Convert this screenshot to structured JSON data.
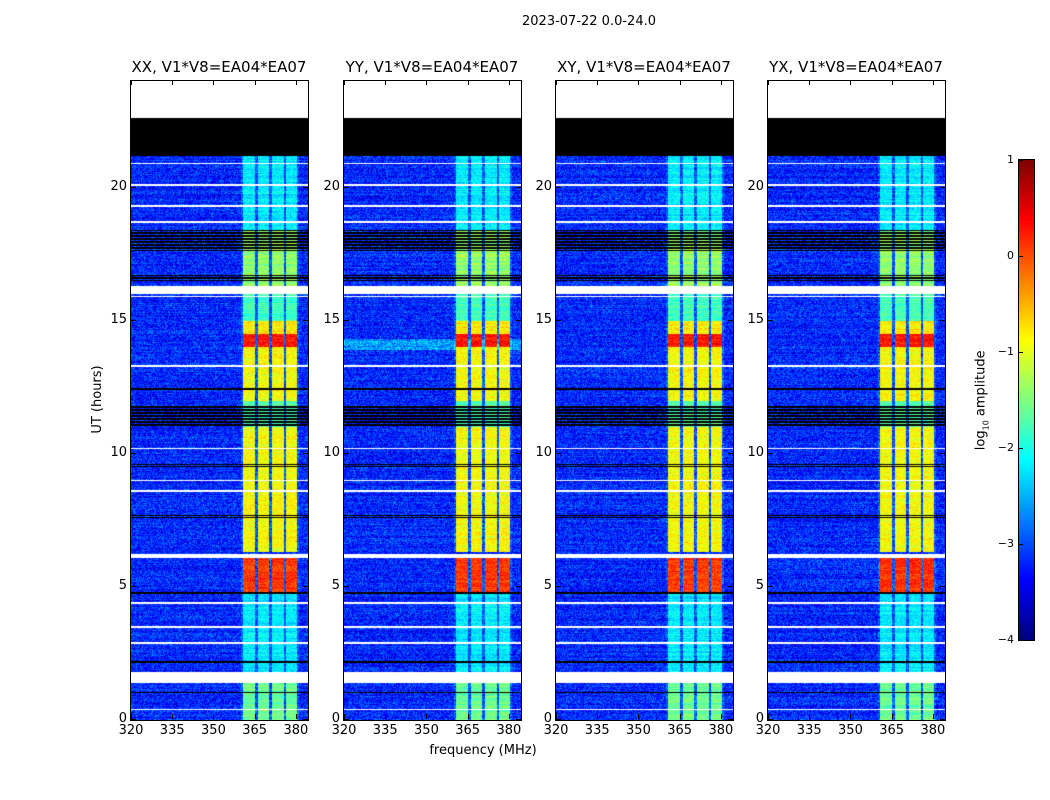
{
  "chart_data": {
    "type": "heatmap",
    "title": "2023-07-22 0.0-24.0",
    "xlabel": "frequency (MHz)",
    "ylabel": "UT (hours)",
    "xlim": [
      320,
      384.4
    ],
    "ylim": [
      0,
      24
    ],
    "xticks": [
      320,
      335,
      350,
      365,
      380
    ],
    "yticks": [
      0,
      5,
      10,
      15,
      20
    ],
    "panels": [
      {
        "title": "XX, V1*V8=EA04*EA07",
        "seed": 11
      },
      {
        "title": "YY, V1*V8=EA04*EA07",
        "seed": 23
      },
      {
        "title": "XY, V1*V8=EA04*EA07",
        "seed": 37
      },
      {
        "title": "YX, V1*V8=EA04*EA07",
        "seed": 51
      }
    ],
    "colorbar": {
      "label_main": "log",
      "label_sub": "10",
      "label_tail": " amplitude",
      "colormap": "jet",
      "range": [
        -4,
        1
      ],
      "ticks": [
        "1",
        "0",
        "−1",
        "−2",
        "−3",
        "−4"
      ]
    },
    "background_level": -3.2,
    "rfi_channels_mhz": [
      [
        360.7,
        365.0
      ],
      [
        366.2,
        370.2
      ],
      [
        371.3,
        375.6
      ],
      [
        376.4,
        380.4
      ]
    ],
    "rfi_level_by_time": [
      {
        "from": 0,
        "to": 1.4,
        "level": -1.6
      },
      {
        "from": 1.8,
        "to": 4.8,
        "level": -2.2
      },
      {
        "from": 4.8,
        "to": 6.1,
        "level": 0.1
      },
      {
        "from": 6.3,
        "to": 11.0,
        "level": -0.9
      },
      {
        "from": 11.0,
        "to": 12.0,
        "level": -1.7
      },
      {
        "from": 12.0,
        "to": 14.0,
        "level": -0.9
      },
      {
        "from": 14.0,
        "to": 14.5,
        "level": 0.3
      },
      {
        "from": 14.5,
        "to": 15.0,
        "level": -0.8
      },
      {
        "from": 15.0,
        "to": 16.0,
        "level": -1.8
      },
      {
        "from": 16.3,
        "to": 18.4,
        "level": -1.4
      },
      {
        "from": 18.4,
        "to": 21.2,
        "level": -2.2
      }
    ],
    "no_data_hours": [
      [
        22.6,
        24.0
      ],
      [
        16.0,
        16.3
      ],
      [
        1.4,
        1.8
      ],
      [
        6.1,
        6.25
      ]
    ],
    "flagged_hours": [
      [
        21.2,
        22.6
      ],
      [
        17.6,
        18.4
      ],
      [
        16.5,
        16.7
      ],
      [
        12.4,
        12.5
      ],
      [
        11.0,
        11.8
      ],
      [
        9.5,
        9.6
      ],
      [
        7.6,
        7.7
      ],
      [
        6.5,
        6.55
      ],
      [
        4.7,
        4.8
      ],
      [
        2.1,
        2.2
      ],
      [
        1.0,
        1.05
      ]
    ],
    "white_line_hours": [
      0.4,
      2.9,
      3.5,
      4.4,
      8.6,
      9.0,
      10.2,
      13.3,
      15.9,
      18.7,
      19.3,
      20.1,
      20.9
    ]
  }
}
